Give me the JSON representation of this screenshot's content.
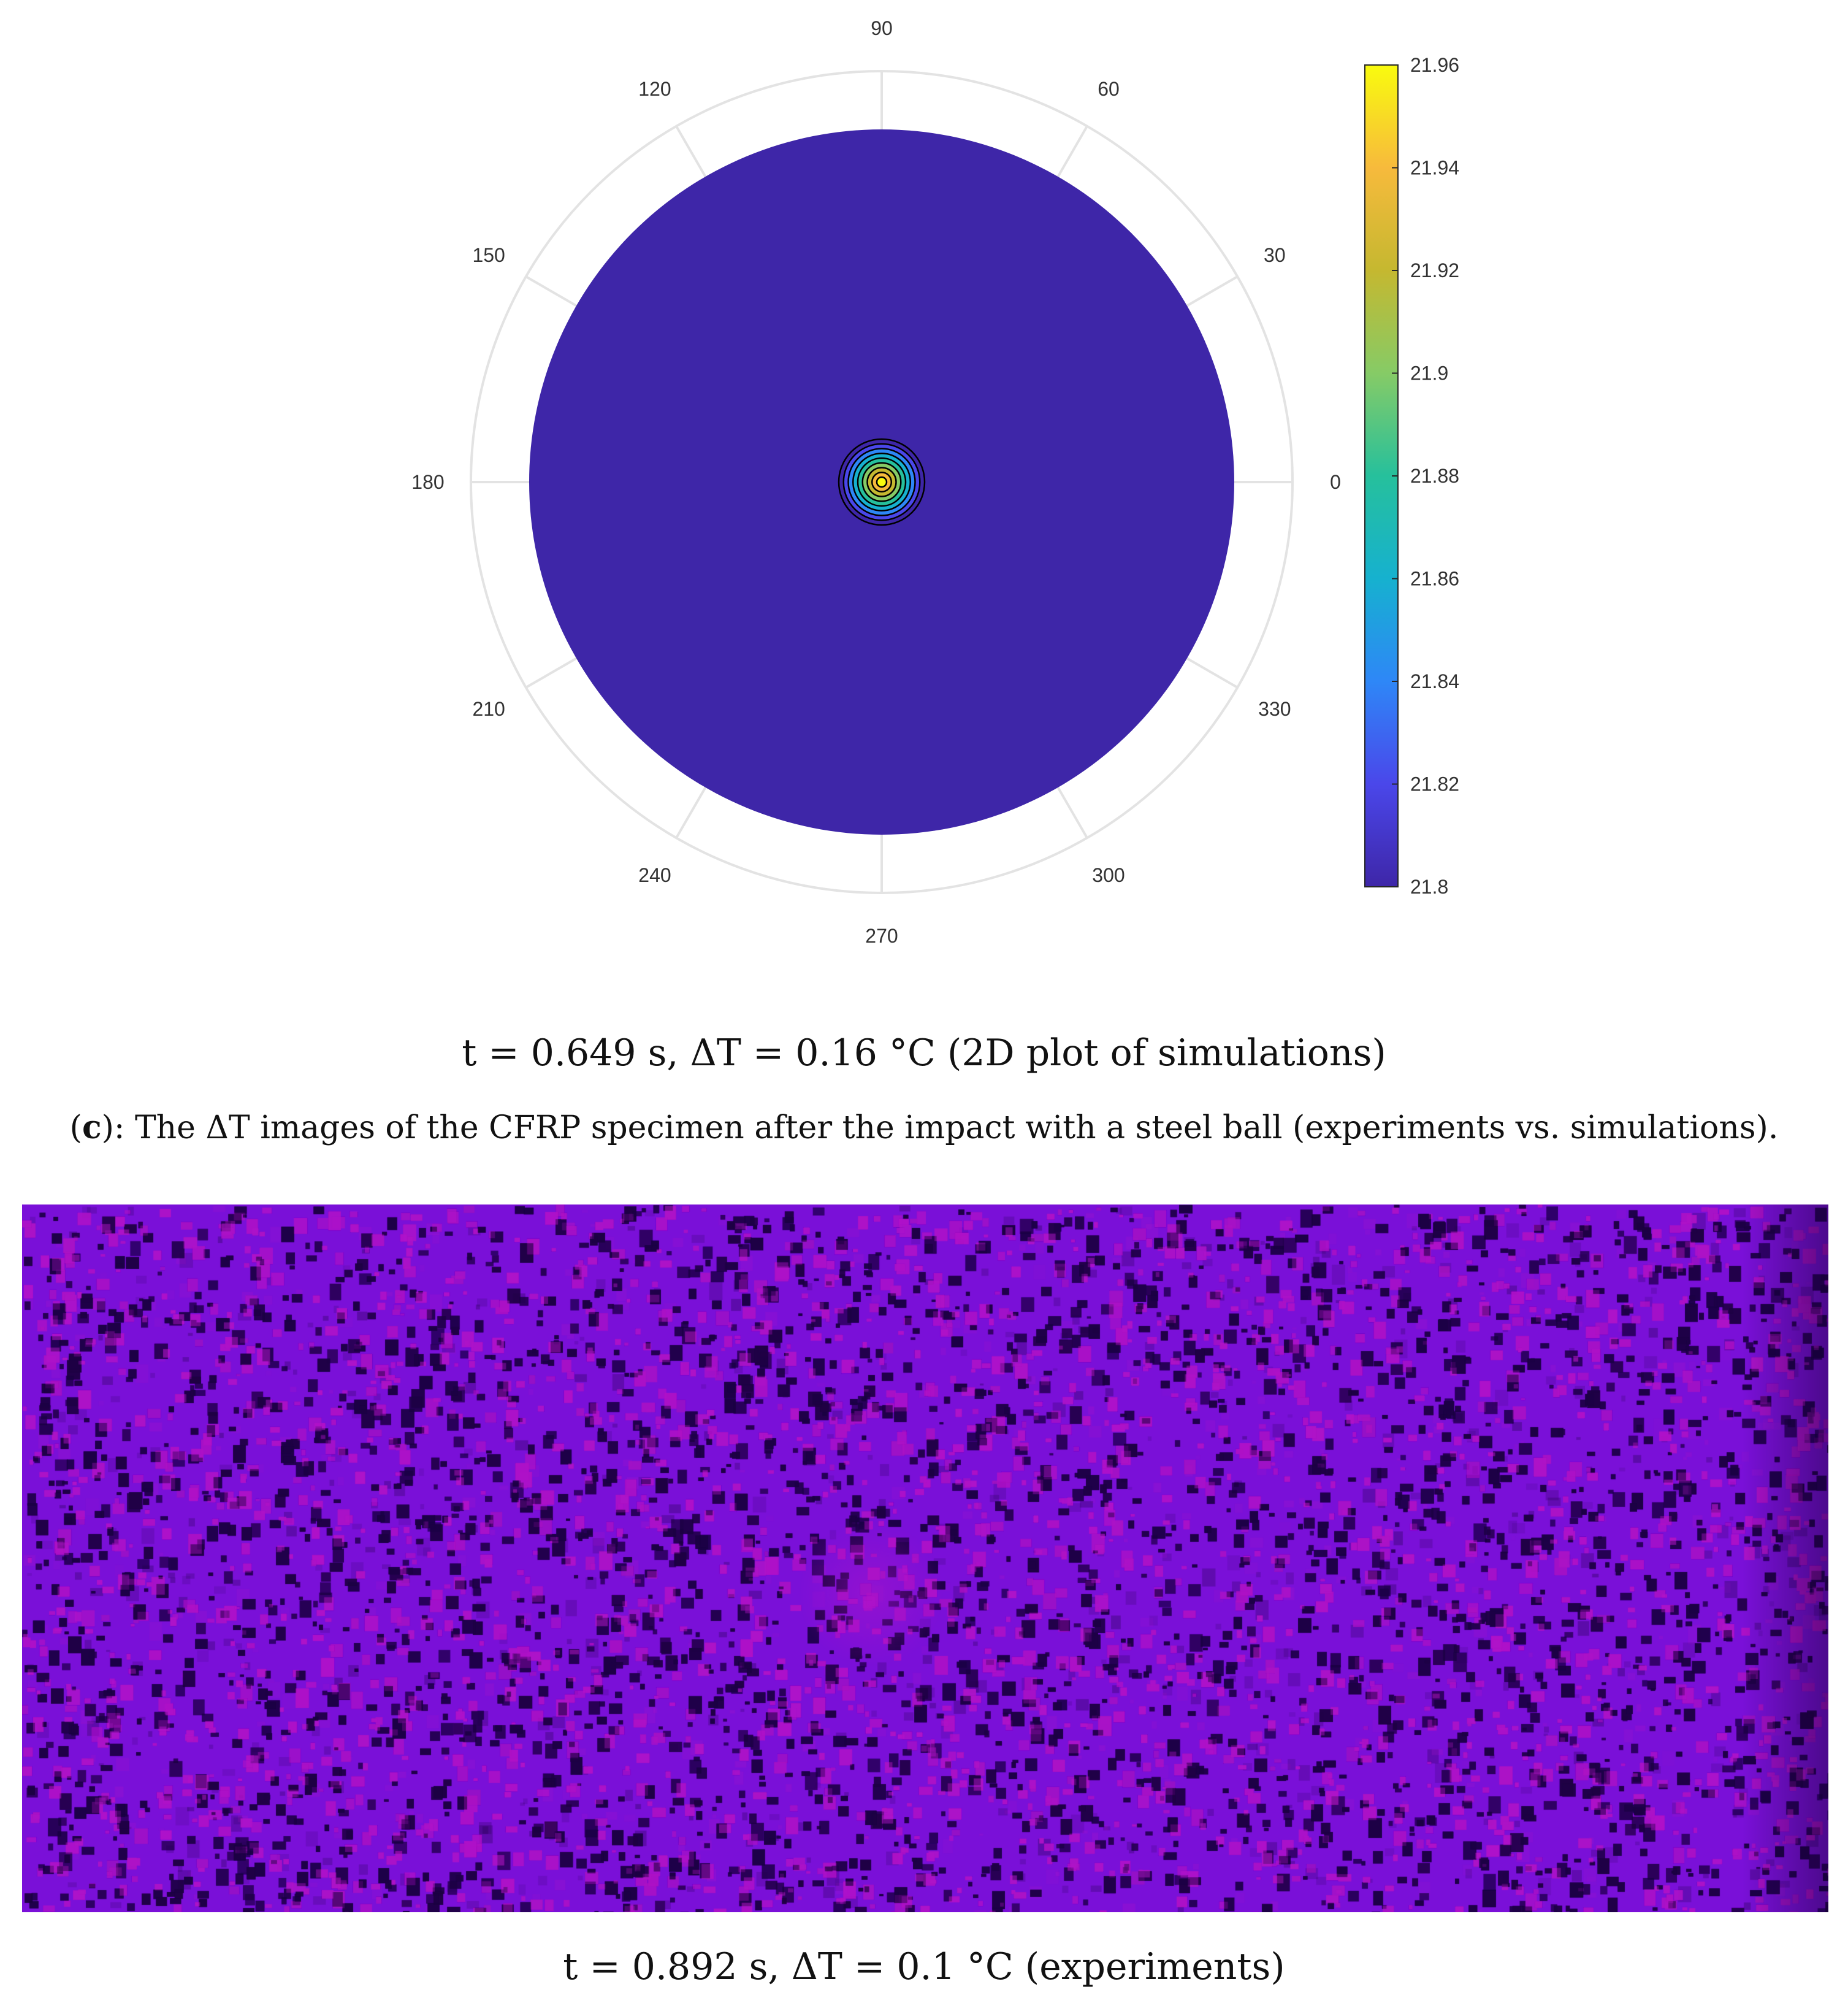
{
  "chart_data": [
    {
      "type": "polar contour",
      "angle_ticks": [
        "0",
        "30",
        "60",
        "90",
        "120",
        "150",
        "180",
        "210",
        "240",
        "270",
        "300",
        "330"
      ],
      "colorbar": {
        "ticks": [
          "21.8",
          "21.82",
          "21.84",
          "21.86",
          "21.88",
          "21.9",
          "21.92",
          "21.94",
          "21.96"
        ],
        "range": [
          21.8,
          21.96
        ],
        "colormap": "parula",
        "colors": [
          "#3e26a8",
          "#4a47ea",
          "#2e87f7",
          "#16b1cf",
          "#26c09c",
          "#86cb66",
          "#c5b830",
          "#f7ba3c",
          "#f9fb0e"
        ]
      },
      "background_value": 21.8,
      "center_peak_value": 21.96,
      "hot_spot": "center",
      "contour_levels": [
        21.8,
        21.82,
        21.84,
        21.86,
        21.88,
        21.9,
        21.92,
        21.94,
        21.96
      ]
    },
    {
      "type": "thermal image",
      "dominant_color": "#7a10d8",
      "hot_spot_color": "#b015c8",
      "hot_spot": "center",
      "edge_darkening": "right"
    }
  ],
  "captions": {
    "simulation": "t = 0.649 s,  ΔT = 0.16 °C  (2D plot of simulations)",
    "figure_label": "c",
    "figure_text": "): The ΔT images of the CFRP specimen after the impact with a steel ball (experiments vs. simulations).",
    "experiment": "t = 0.892 s, ΔT = 0.1 °C  (experiments)"
  },
  "colors": {
    "polar_ring": "#e3e3e3",
    "contour_line": "#000000"
  }
}
